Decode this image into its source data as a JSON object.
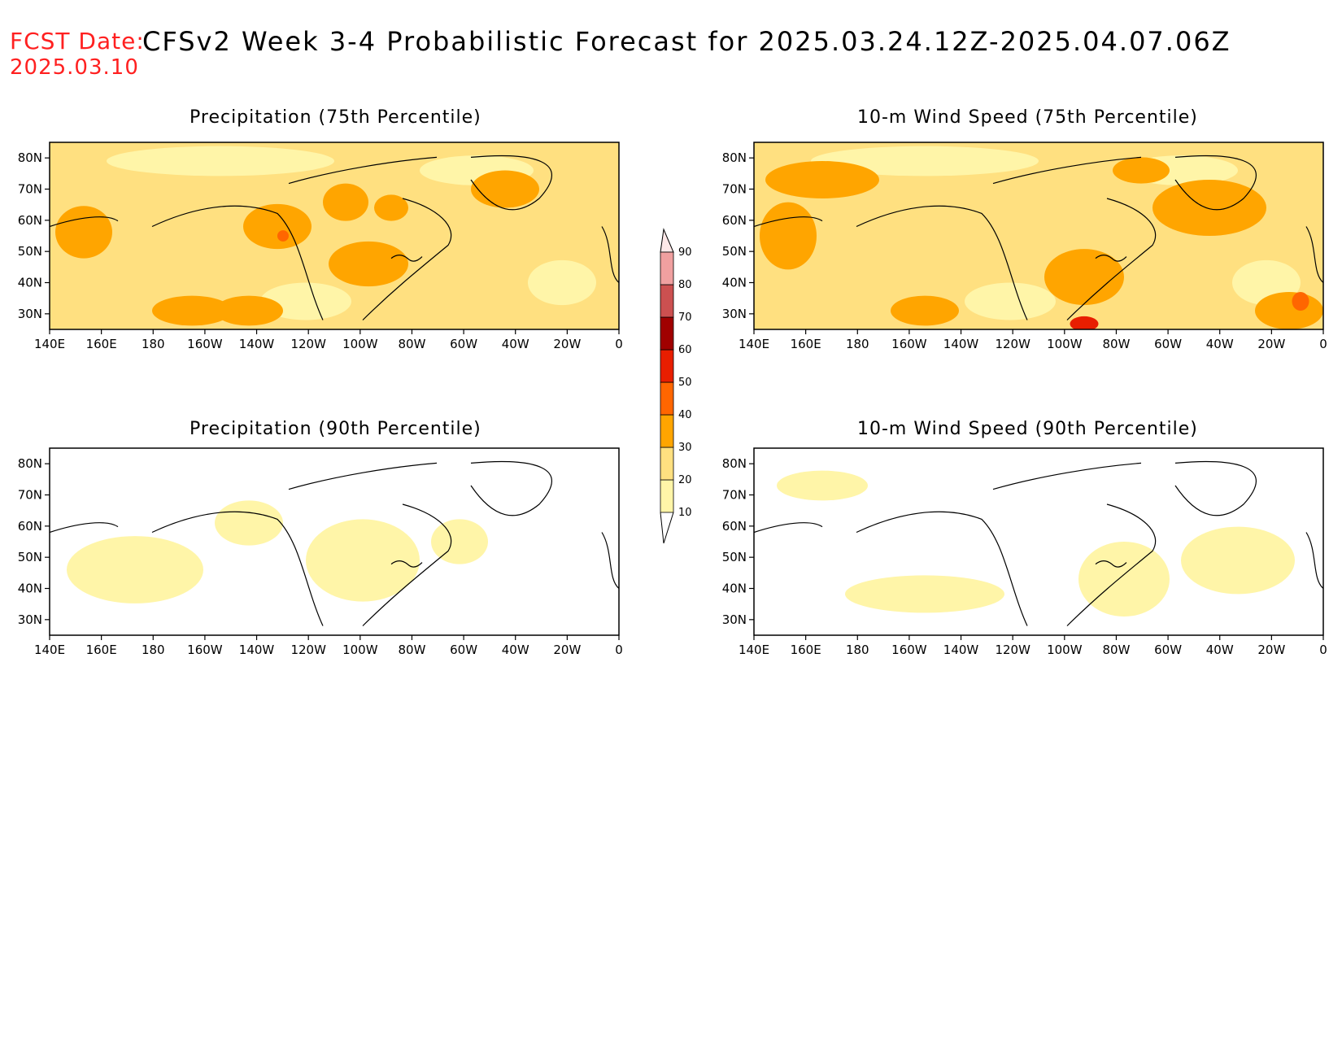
{
  "header": {
    "fcst_label": "FCST Date:",
    "fcst_date": "2025.03.10",
    "title": "CFSv2 Week 3-4 Probabilistic Forecast for 2025.03.24.12Z-2025.04.07.06Z"
  },
  "panels": [
    {
      "title": "Precipitation (75th Percentile)",
      "intensity": "high",
      "variable": "precip"
    },
    {
      "title": "10-m Wind Speed (75th Percentile)",
      "intensity": "high",
      "variable": "wind"
    },
    {
      "title": "Precipitation (90th Percentile)",
      "intensity": "low",
      "variable": "precip"
    },
    {
      "title": "10-m Wind Speed (90th Percentile)",
      "intensity": "low",
      "variable": "wind"
    }
  ],
  "axes": {
    "lon_ticks": [
      "140E",
      "160E",
      "180",
      "160W",
      "140W",
      "120W",
      "100W",
      "80W",
      "60W",
      "40W",
      "20W",
      "0"
    ],
    "lat_ticks": [
      "80N",
      "70N",
      "60N",
      "50N",
      "40N",
      "30N"
    ]
  },
  "legend": {
    "levels": [
      "10",
      "20",
      "30",
      "40",
      "50",
      "60",
      "70",
      "80",
      "90"
    ],
    "colors": [
      "#fff5a8",
      "#ffe080",
      "#ffa500",
      "#ff6600",
      "#e81e00",
      "#a00000",
      "#cc5050",
      "#f0a0a0",
      "#fcdcdc"
    ]
  }
}
